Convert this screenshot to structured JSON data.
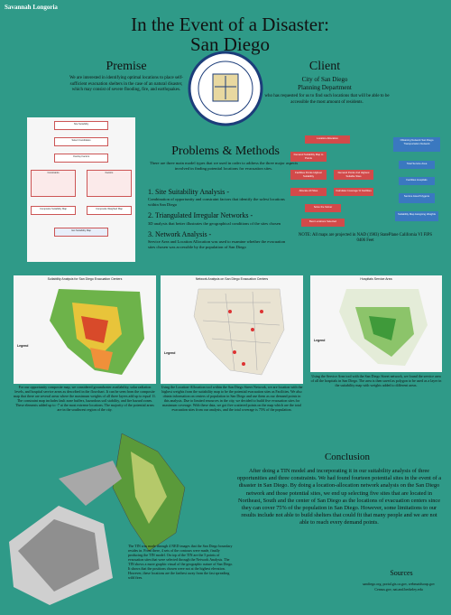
{
  "author": "Savannah Longoria",
  "title": "In the Event of a Disaster:",
  "subtitle": "San Diego",
  "premise": {
    "heading": "Premise",
    "text": "We are interested in identifying optimal locations to place self-sufficient evacuation shelters in the case of an natural disaster, which may consist of severe flooding, fire, and earthquakes."
  },
  "client": {
    "heading": "Client",
    "name": "City of San Diego",
    "dept": "Planning Department",
    "text": "who has requested for us to find such locations that will be able to be accessible the most amount of residents."
  },
  "flow_left": [
    "Site Suitability",
    "Select Candidates",
    "Overlay Factors",
    "Constraints",
    "Factors",
    "Composite Suitability Map",
    "Composite Weighted Map",
    "Get Suitability Map"
  ],
  "methods": {
    "heading": "Problems & Methods",
    "intro": "There are three main model types that we used in order to address the three major aspects involved in finding potential locations for evacuation sites.",
    "items": [
      {
        "title": "Site Suitability Analysis -",
        "text": "Combination of opportunity and constraint factors that identify the safest locations within San Diego"
      },
      {
        "title": "Triangulated Irregular Networks -",
        "text": "3D analysis that better illustrates the geographical conditions of the sites chosen"
      },
      {
        "title": "Network Analysis -",
        "text": "Service Area and Location Allocation was used to examine whether the evacuation sites chosen was accessible by the population of San Diego"
      }
    ]
  },
  "flow_right": {
    "main": [
      "Location-Allocation",
      "Demand Suitability Map to Points",
      "Facilities Points Highest Suitability",
      "Demand Points 2nd Highest Suitable Sites",
      "Allocate All Sites",
      "Calculate Coverage % Facilities",
      "Solve the Solver",
      "Best Locations Selected"
    ],
    "side": [
      "Obtaining Network San Diego Transportation Network",
      "Total Service Area",
      "Facilities Hospitals",
      "Service Area Polygons",
      "Suitability Map Assigning Weights"
    ]
  },
  "note": "NOTE: All maps are projected in NAD (1983) StatePlane California VI FIPS 0406 Feet",
  "maps": [
    {
      "title": "Suitability Analysis for San Diego Evacuation Centers",
      "legend": "Legend",
      "caption": "For our opportunity composite map, we considered groundwater availability, solar radiation levels, and hospital service areas as described in the flowchart. It can be seen from the composite map that there are several areas where the maximum weights of all three layers add up to equal 11. The constraint map includes fault zone buffers, hazardous soil stability, and fire hazard zones. These elements added up to -7 at the most extreme locations. The majority of the potential areas are in the southwest region of the city."
    },
    {
      "title": "Network Analysis on San Diego Evacuation Centers",
      "legend": "Legend",
      "caption": "Using the Location-Allocation tool within the San Diego Street Network, we are location with the highest weights from the suitability map to be the potential evacuation sites as Facilities. We also obtain information on centers of population in San Diego and use them as our demand points in this analysis. Due to limited resources in the city, we decided to build five evacuation sites for maximum coverage. With these data, we got five scattered points on the map which are the total evacuation sites from our analysis, and the total coverage is 75% of the population."
    },
    {
      "title": "Hospitals Service Area",
      "legend": "Legend",
      "caption": "Using the Service Area tool with the San Diego Street network, we found the service area of all the hospitals in San Diego. The area is then saved as polygon to be used as a layer in the suitability map with weights added to different areas."
    }
  ],
  "tin_caption": "The TIN was made through 4 NED images that the San Diego boundary resides in. From there, 4 sets of the contours were made, finally producing the TIN model. On top of the TIN are the 5 points of evacuation sites that were selected through the Network Analysis. The TIN shows a more graphic visual of the geographic nature of San Diego. It shows that the positions chosen were not at the highest elevation. However, these locations are the farthest away from the fast spreading wild fires.",
  "conclusion": {
    "heading": "Conclusion",
    "text": "After doing a TIN model and incorporating it in our suitability analysis of three opportunities and three constraints. We had found fourteen potential sites in the event of a disaster in San Diego. By doing a location-allocation network analysis on the San Diego network and those potential sites, we end up selecting five sites that are located in Northeast, South and the center of San Diego as the locations of evacuation centers since they can cover 75% of the population in San Diego. However, some limitations to our results include not able to build shelters that could fit that many people and we are not able to reach every demand points."
  },
  "sources": {
    "heading": "Sources",
    "items": [
      "sandiego.org, portal.gis.ca.gov, webmaidsoup.gov",
      "Census.gov, nat.and.berkeley.edu"
    ]
  }
}
